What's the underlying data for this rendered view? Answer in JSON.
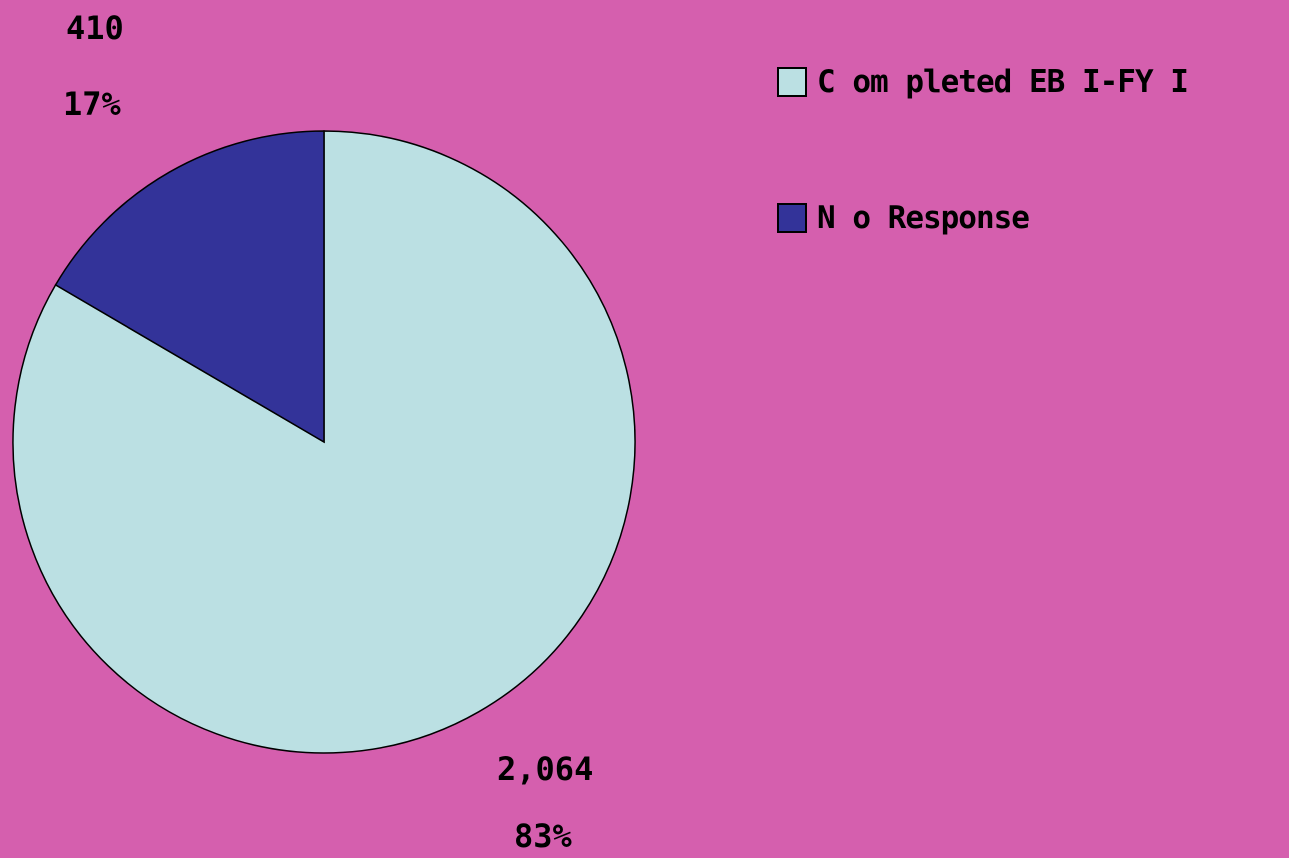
{
  "chart_data": {
    "type": "pie",
    "title": "",
    "background": "#d55fae",
    "legend_position": "top-right",
    "slices": [
      {
        "name": "Completed EBI-FYI",
        "legend_label": "C om pleted EB I-FY I",
        "value": 2064,
        "value_label": "2,064",
        "percent": 83,
        "percent_label": "83%",
        "color": "#bbe0e3"
      },
      {
        "name": "No Response",
        "legend_label": "N o Response",
        "value": 410,
        "value_label": "410",
        "percent": 17,
        "percent_label": "17%",
        "color": "#333399"
      }
    ]
  }
}
